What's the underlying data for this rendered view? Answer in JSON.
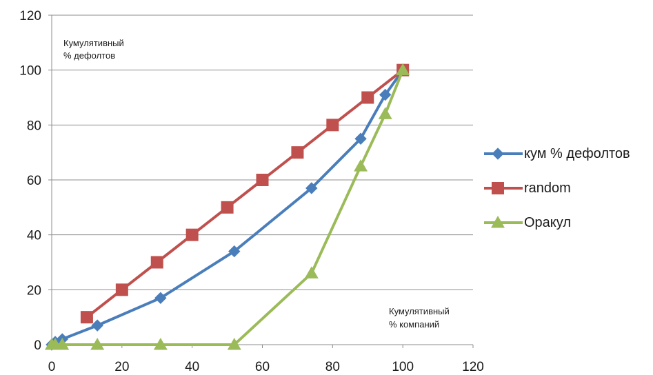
{
  "chart_data": {
    "type": "line",
    "xlabel": "Кумулятивный\n% компаний",
    "ylabel": "Кумулятивный\n% дефолтов",
    "xlim": [
      0,
      120
    ],
    "ylim": [
      0,
      120
    ],
    "xticks": [
      0,
      20,
      40,
      60,
      80,
      100,
      120
    ],
    "yticks": [
      0,
      20,
      40,
      60,
      80,
      100,
      120
    ],
    "grid": "horizontal",
    "legend_position": "right",
    "series": [
      {
        "name": "кум % дефолтов",
        "color": "#4a7ebb",
        "marker": "diamond",
        "x": [
          0,
          1,
          3,
          13,
          31,
          52,
          74,
          88,
          95,
          100
        ],
        "y": [
          0,
          1,
          2,
          7,
          17,
          34,
          57,
          75,
          91,
          100
        ]
      },
      {
        "name": "random",
        "color": "#c0504d",
        "marker": "square",
        "x": [
          10,
          20,
          30,
          40,
          50,
          60,
          70,
          80,
          90,
          100
        ],
        "y": [
          10,
          20,
          30,
          40,
          50,
          60,
          70,
          80,
          90,
          100
        ]
      },
      {
        "name": "Оракул",
        "color": "#9bbb59",
        "marker": "triangle",
        "x": [
          0,
          1,
          3,
          13,
          31,
          52,
          74,
          88,
          95,
          100
        ],
        "y": [
          0,
          0,
          0,
          0,
          0,
          0,
          26,
          65,
          84,
          100
        ]
      }
    ]
  }
}
